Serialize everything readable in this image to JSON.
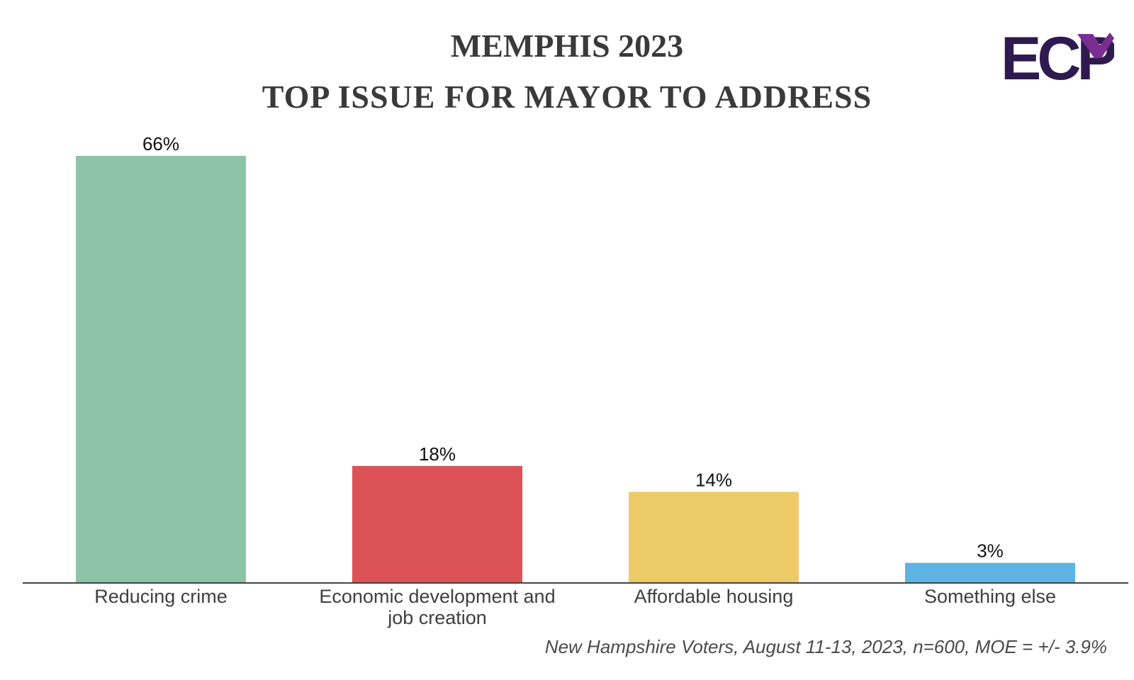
{
  "header": {
    "title": "MEMPHIS 2023",
    "subtitle": "TOP ISSUE FOR MAYOR TO ADDRESS"
  },
  "logo": {
    "text": "ECP",
    "colors": {
      "primary": "#2e1a4f",
      "accent": "#7a2e93"
    }
  },
  "footnote": "New Hampshire Voters, August 11-13, 2023, n=600, MOE = +/- 3.9%",
  "chart_data": {
    "type": "bar",
    "title": "TOP ISSUE FOR MAYOR TO ADDRESS",
    "xlabel": "",
    "ylabel": "",
    "ylim": [
      0,
      66
    ],
    "grid": false,
    "legend": "none",
    "categories": [
      [
        "Reducing crime"
      ],
      [
        "Economic development and",
        "job creation"
      ],
      [
        "Affordable housing"
      ],
      [
        "Something else"
      ]
    ],
    "values": [
      66,
      18,
      14,
      3
    ],
    "value_labels": [
      "66%",
      "18%",
      "14%",
      "3%"
    ],
    "colors": [
      "#8dc3a6",
      "#dc5256",
      "#eecb69",
      "#5db3e3"
    ]
  }
}
